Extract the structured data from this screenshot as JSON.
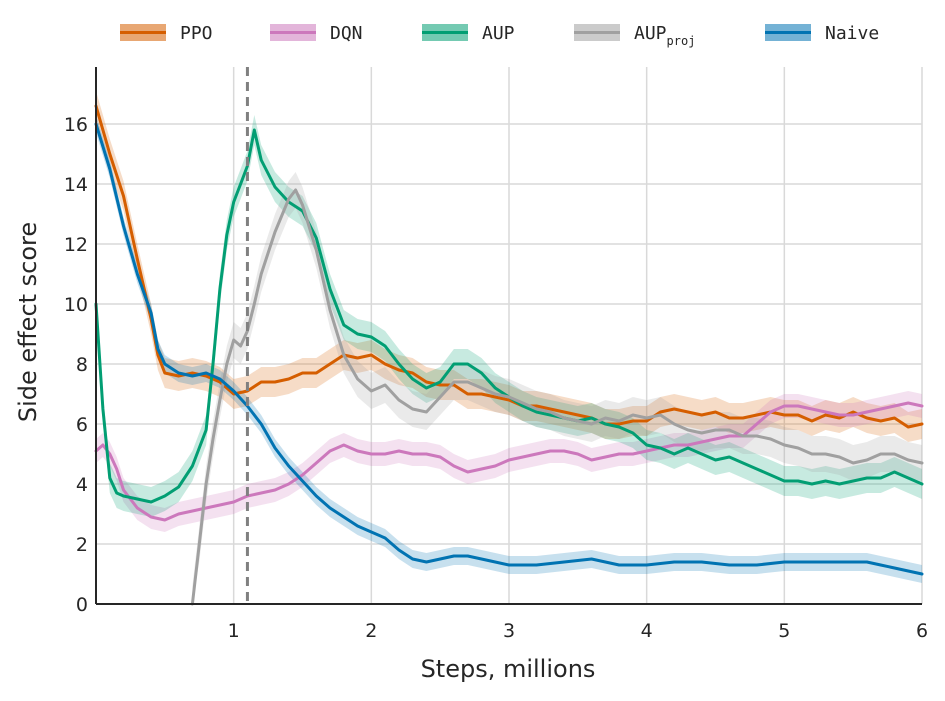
{
  "chart_data": {
    "type": "line",
    "xlabel": "Steps, millions",
    "ylabel": "Side effect score",
    "xlim": [
      0,
      6
    ],
    "ylim": [
      0,
      17.9
    ],
    "xticks": [
      1,
      2,
      3,
      4,
      5,
      6
    ],
    "yticks": [
      0,
      2,
      4,
      6,
      8,
      10,
      12,
      14,
      16
    ],
    "grid": true,
    "legend_position": "top",
    "vline": {
      "x": 1.1,
      "style": "dashed",
      "color": "#808080"
    },
    "series": [
      {
        "name": "PPO",
        "color": "#d55e00",
        "band": 0.5,
        "points": [
          [
            0,
            16.6
          ],
          [
            0.1,
            15.0
          ],
          [
            0.2,
            13.6
          ],
          [
            0.3,
            11.5
          ],
          [
            0.4,
            9.5
          ],
          [
            0.45,
            8.3
          ],
          [
            0.5,
            7.7
          ],
          [
            0.6,
            7.6
          ],
          [
            0.7,
            7.7
          ],
          [
            0.8,
            7.6
          ],
          [
            0.9,
            7.4
          ],
          [
            1.0,
            7.0
          ],
          [
            1.1,
            7.1
          ],
          [
            1.2,
            7.4
          ],
          [
            1.3,
            7.4
          ],
          [
            1.4,
            7.5
          ],
          [
            1.5,
            7.7
          ],
          [
            1.6,
            7.7
          ],
          [
            1.7,
            8.0
          ],
          [
            1.8,
            8.3
          ],
          [
            1.9,
            8.2
          ],
          [
            2.0,
            8.3
          ],
          [
            2.1,
            8.0
          ],
          [
            2.2,
            7.8
          ],
          [
            2.3,
            7.7
          ],
          [
            2.4,
            7.4
          ],
          [
            2.5,
            7.3
          ],
          [
            2.6,
            7.3
          ],
          [
            2.7,
            7.0
          ],
          [
            2.8,
            7.0
          ],
          [
            2.9,
            6.9
          ],
          [
            3.0,
            6.8
          ],
          [
            3.1,
            6.6
          ],
          [
            3.2,
            6.6
          ],
          [
            3.3,
            6.5
          ],
          [
            3.4,
            6.4
          ],
          [
            3.5,
            6.3
          ],
          [
            3.6,
            6.2
          ],
          [
            3.7,
            6.0
          ],
          [
            3.8,
            6.0
          ],
          [
            3.9,
            6.1
          ],
          [
            4.0,
            6.1
          ],
          [
            4.1,
            6.4
          ],
          [
            4.2,
            6.5
          ],
          [
            4.3,
            6.4
          ],
          [
            4.4,
            6.3
          ],
          [
            4.5,
            6.4
          ],
          [
            4.6,
            6.2
          ],
          [
            4.7,
            6.2
          ],
          [
            4.8,
            6.3
          ],
          [
            4.9,
            6.4
          ],
          [
            5.0,
            6.3
          ],
          [
            5.1,
            6.3
          ],
          [
            5.2,
            6.1
          ],
          [
            5.3,
            6.3
          ],
          [
            5.4,
            6.2
          ],
          [
            5.5,
            6.4
          ],
          [
            5.6,
            6.2
          ],
          [
            5.7,
            6.1
          ],
          [
            5.8,
            6.2
          ],
          [
            5.9,
            5.9
          ],
          [
            6.0,
            6.0
          ]
        ]
      },
      {
        "name": "DQN",
        "color": "#cc78bc",
        "band": 0.4,
        "points": [
          [
            0,
            5.1
          ],
          [
            0.05,
            5.3
          ],
          [
            0.1,
            5.0
          ],
          [
            0.15,
            4.5
          ],
          [
            0.2,
            3.8
          ],
          [
            0.3,
            3.2
          ],
          [
            0.4,
            2.9
          ],
          [
            0.5,
            2.8
          ],
          [
            0.6,
            3.0
          ],
          [
            0.7,
            3.1
          ],
          [
            0.8,
            3.2
          ],
          [
            0.9,
            3.3
          ],
          [
            1.0,
            3.4
          ],
          [
            1.1,
            3.6
          ],
          [
            1.2,
            3.7
          ],
          [
            1.3,
            3.8
          ],
          [
            1.4,
            4.0
          ],
          [
            1.5,
            4.3
          ],
          [
            1.6,
            4.7
          ],
          [
            1.7,
            5.1
          ],
          [
            1.8,
            5.3
          ],
          [
            1.9,
            5.1
          ],
          [
            2.0,
            5.0
          ],
          [
            2.1,
            5.0
          ],
          [
            2.2,
            5.1
          ],
          [
            2.3,
            5.0
          ],
          [
            2.4,
            5.0
          ],
          [
            2.5,
            4.9
          ],
          [
            2.6,
            4.6
          ],
          [
            2.7,
            4.4
          ],
          [
            2.8,
            4.5
          ],
          [
            2.9,
            4.6
          ],
          [
            3.0,
            4.8
          ],
          [
            3.1,
            4.9
          ],
          [
            3.2,
            5.0
          ],
          [
            3.3,
            5.1
          ],
          [
            3.4,
            5.1
          ],
          [
            3.5,
            5.0
          ],
          [
            3.6,
            4.8
          ],
          [
            3.7,
            4.9
          ],
          [
            3.8,
            5.0
          ],
          [
            3.9,
            5.0
          ],
          [
            4.0,
            5.1
          ],
          [
            4.1,
            5.2
          ],
          [
            4.2,
            5.3
          ],
          [
            4.3,
            5.3
          ],
          [
            4.4,
            5.4
          ],
          [
            4.5,
            5.5
          ],
          [
            4.6,
            5.6
          ],
          [
            4.7,
            5.6
          ],
          [
            4.8,
            6.0
          ],
          [
            4.9,
            6.4
          ],
          [
            5.0,
            6.6
          ],
          [
            5.1,
            6.6
          ],
          [
            5.2,
            6.5
          ],
          [
            5.3,
            6.4
          ],
          [
            5.4,
            6.3
          ],
          [
            5.5,
            6.3
          ],
          [
            5.6,
            6.4
          ],
          [
            5.7,
            6.5
          ],
          [
            5.8,
            6.6
          ],
          [
            5.9,
            6.7
          ],
          [
            6.0,
            6.6
          ]
        ]
      },
      {
        "name": "AUP",
        "color": "#029e73",
        "band": 0.5,
        "points": [
          [
            0,
            10.0
          ],
          [
            0.05,
            6.5
          ],
          [
            0.1,
            4.2
          ],
          [
            0.15,
            3.7
          ],
          [
            0.2,
            3.6
          ],
          [
            0.3,
            3.5
          ],
          [
            0.4,
            3.4
          ],
          [
            0.5,
            3.6
          ],
          [
            0.6,
            3.9
          ],
          [
            0.7,
            4.6
          ],
          [
            0.8,
            5.8
          ],
          [
            0.85,
            8.0
          ],
          [
            0.9,
            10.5
          ],
          [
            0.95,
            12.3
          ],
          [
            1.0,
            13.4
          ],
          [
            1.05,
            14.0
          ],
          [
            1.1,
            14.6
          ],
          [
            1.15,
            15.8
          ],
          [
            1.2,
            14.8
          ],
          [
            1.3,
            13.9
          ],
          [
            1.4,
            13.4
          ],
          [
            1.5,
            13.1
          ],
          [
            1.6,
            12.2
          ],
          [
            1.7,
            10.5
          ],
          [
            1.8,
            9.3
          ],
          [
            1.9,
            9.0
          ],
          [
            2.0,
            8.9
          ],
          [
            2.1,
            8.6
          ],
          [
            2.2,
            8.0
          ],
          [
            2.3,
            7.5
          ],
          [
            2.4,
            7.2
          ],
          [
            2.5,
            7.4
          ],
          [
            2.6,
            8.0
          ],
          [
            2.7,
            8.0
          ],
          [
            2.8,
            7.7
          ],
          [
            2.9,
            7.2
          ],
          [
            3.0,
            6.9
          ],
          [
            3.1,
            6.6
          ],
          [
            3.2,
            6.4
          ],
          [
            3.3,
            6.3
          ],
          [
            3.4,
            6.2
          ],
          [
            3.5,
            6.1
          ],
          [
            3.6,
            6.2
          ],
          [
            3.7,
            6.0
          ],
          [
            3.8,
            5.9
          ],
          [
            3.9,
            5.7
          ],
          [
            4.0,
            5.3
          ],
          [
            4.1,
            5.2
          ],
          [
            4.2,
            5.0
          ],
          [
            4.3,
            5.2
          ],
          [
            4.4,
            5.0
          ],
          [
            4.5,
            4.8
          ],
          [
            4.6,
            4.9
          ],
          [
            4.7,
            4.7
          ],
          [
            4.8,
            4.5
          ],
          [
            4.9,
            4.3
          ],
          [
            5.0,
            4.1
          ],
          [
            5.1,
            4.1
          ],
          [
            5.2,
            4.0
          ],
          [
            5.3,
            4.1
          ],
          [
            5.4,
            4.0
          ],
          [
            5.5,
            4.1
          ],
          [
            5.6,
            4.2
          ],
          [
            5.7,
            4.2
          ],
          [
            5.8,
            4.4
          ],
          [
            5.9,
            4.2
          ],
          [
            6.0,
            4.0
          ]
        ]
      },
      {
        "name": "AUPproj",
        "color": "#a0a0a0",
        "band": 0.6,
        "points": [
          [
            0.7,
            0.0
          ],
          [
            0.75,
            2.0
          ],
          [
            0.8,
            4.0
          ],
          [
            0.85,
            5.5
          ],
          [
            0.9,
            6.8
          ],
          [
            0.95,
            8.0
          ],
          [
            1.0,
            8.8
          ],
          [
            1.05,
            8.6
          ],
          [
            1.1,
            9.1
          ],
          [
            1.15,
            10.0
          ],
          [
            1.2,
            11.0
          ],
          [
            1.3,
            12.4
          ],
          [
            1.4,
            13.5
          ],
          [
            1.45,
            13.8
          ],
          [
            1.5,
            13.3
          ],
          [
            1.6,
            11.8
          ],
          [
            1.7,
            9.8
          ],
          [
            1.8,
            8.3
          ],
          [
            1.9,
            7.5
          ],
          [
            2.0,
            7.1
          ],
          [
            2.1,
            7.3
          ],
          [
            2.2,
            6.8
          ],
          [
            2.3,
            6.5
          ],
          [
            2.4,
            6.4
          ],
          [
            2.5,
            6.9
          ],
          [
            2.6,
            7.4
          ],
          [
            2.7,
            7.4
          ],
          [
            2.8,
            7.2
          ],
          [
            2.9,
            7.0
          ],
          [
            3.0,
            6.9
          ],
          [
            3.1,
            6.7
          ],
          [
            3.2,
            6.5
          ],
          [
            3.3,
            6.4
          ],
          [
            3.4,
            6.2
          ],
          [
            3.5,
            6.1
          ],
          [
            3.6,
            6.0
          ],
          [
            3.7,
            6.2
          ],
          [
            3.8,
            6.1
          ],
          [
            3.9,
            6.3
          ],
          [
            4.0,
            6.2
          ],
          [
            4.1,
            6.3
          ],
          [
            4.2,
            6.0
          ],
          [
            4.3,
            5.8
          ],
          [
            4.4,
            5.7
          ],
          [
            4.5,
            5.8
          ],
          [
            4.6,
            5.8
          ],
          [
            4.7,
            5.6
          ],
          [
            4.8,
            5.6
          ],
          [
            4.9,
            5.5
          ],
          [
            5.0,
            5.3
          ],
          [
            5.1,
            5.2
          ],
          [
            5.2,
            5.0
          ],
          [
            5.3,
            5.0
          ],
          [
            5.4,
            4.9
          ],
          [
            5.5,
            4.7
          ],
          [
            5.6,
            4.8
          ],
          [
            5.7,
            5.0
          ],
          [
            5.8,
            5.0
          ],
          [
            5.9,
            4.8
          ],
          [
            6.0,
            4.7
          ]
        ]
      },
      {
        "name": "Naive",
        "color": "#0173b2",
        "band": 0.3,
        "points": [
          [
            0,
            16.0
          ],
          [
            0.1,
            14.5
          ],
          [
            0.2,
            12.6
          ],
          [
            0.3,
            11.0
          ],
          [
            0.4,
            9.7
          ],
          [
            0.45,
            8.5
          ],
          [
            0.5,
            8.0
          ],
          [
            0.6,
            7.7
          ],
          [
            0.7,
            7.6
          ],
          [
            0.8,
            7.7
          ],
          [
            0.9,
            7.5
          ],
          [
            1.0,
            7.1
          ],
          [
            1.1,
            6.6
          ],
          [
            1.2,
            6.0
          ],
          [
            1.3,
            5.2
          ],
          [
            1.4,
            4.6
          ],
          [
            1.5,
            4.1
          ],
          [
            1.6,
            3.6
          ],
          [
            1.7,
            3.2
          ],
          [
            1.8,
            2.9
          ],
          [
            1.9,
            2.6
          ],
          [
            2.0,
            2.4
          ],
          [
            2.1,
            2.2
          ],
          [
            2.2,
            1.8
          ],
          [
            2.3,
            1.5
          ],
          [
            2.4,
            1.4
          ],
          [
            2.5,
            1.5
          ],
          [
            2.6,
            1.6
          ],
          [
            2.7,
            1.6
          ],
          [
            2.8,
            1.5
          ],
          [
            2.9,
            1.4
          ],
          [
            3.0,
            1.3
          ],
          [
            3.2,
            1.3
          ],
          [
            3.4,
            1.4
          ],
          [
            3.6,
            1.5
          ],
          [
            3.8,
            1.3
          ],
          [
            4.0,
            1.3
          ],
          [
            4.2,
            1.4
          ],
          [
            4.4,
            1.4
          ],
          [
            4.6,
            1.3
          ],
          [
            4.8,
            1.3
          ],
          [
            5.0,
            1.4
          ],
          [
            5.2,
            1.4
          ],
          [
            5.4,
            1.4
          ],
          [
            5.6,
            1.4
          ],
          [
            5.7,
            1.3
          ],
          [
            5.8,
            1.2
          ],
          [
            5.9,
            1.1
          ],
          [
            6.0,
            1.0
          ]
        ]
      }
    ]
  }
}
